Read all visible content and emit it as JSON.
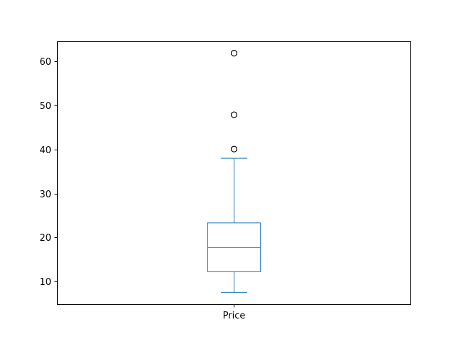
{
  "chart_data": {
    "type": "box",
    "categories": [
      "Price"
    ],
    "series": [
      {
        "whisker_low": 7.5,
        "q1": 12.2,
        "median": 17.7,
        "q3": 23.3,
        "whisker_high": 38.0,
        "outliers": [
          40.1,
          47.9,
          61.9
        ]
      }
    ],
    "ylim": [
      4.8,
      64.6
    ],
    "yticks": [
      10,
      20,
      30,
      40,
      50,
      60
    ],
    "title": "",
    "xlabel": "",
    "ylabel": "",
    "grid": false,
    "colors": {
      "box": "#1f77b4",
      "median": "#2ca02c",
      "outlier": "#000000",
      "axes": "#000000"
    }
  }
}
